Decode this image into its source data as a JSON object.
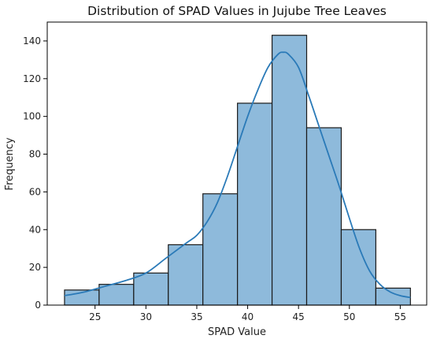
{
  "chart_data": {
    "type": "bar",
    "subtype": "histogram-with-kde",
    "title": "Distribution of SPAD Values in Jujube Tree Leaves",
    "xlabel": "SPAD Value",
    "ylabel": "Frequency",
    "xlim": [
      20.3,
      57.6
    ],
    "ylim": [
      0,
      150
    ],
    "xticks": [
      25,
      30,
      35,
      40,
      45,
      50,
      55
    ],
    "yticks": [
      0,
      20,
      40,
      60,
      80,
      100,
      120,
      140
    ],
    "bin_edges": [
      22.0,
      25.4,
      28.8,
      32.2,
      35.6,
      39.0,
      42.4,
      45.8,
      49.2,
      52.6,
      56.0
    ],
    "values": [
      8,
      11,
      17,
      32,
      59,
      107,
      143,
      94,
      40,
      9
    ],
    "kde": {
      "x": [
        22,
        24,
        26,
        28,
        30,
        32,
        34,
        35,
        36,
        37,
        38,
        39,
        40,
        41,
        42,
        43,
        43.5,
        44,
        45,
        46,
        47,
        48,
        49,
        50,
        51,
        52,
        53,
        54,
        55,
        56
      ],
      "y": [
        5,
        7,
        10,
        13,
        17,
        25,
        33,
        37,
        44,
        54,
        68,
        84,
        100,
        114,
        126,
        133,
        134,
        133,
        126,
        111,
        95,
        79,
        63,
        46,
        30,
        18,
        11,
        7,
        5,
        4
      ]
    },
    "grid": false,
    "legend": "none",
    "colors": {
      "bar_fill": "#8ebadb",
      "bar_edge": "#1a1a1a",
      "kde_line": "#2a7ab8",
      "axis": "#000000"
    }
  }
}
